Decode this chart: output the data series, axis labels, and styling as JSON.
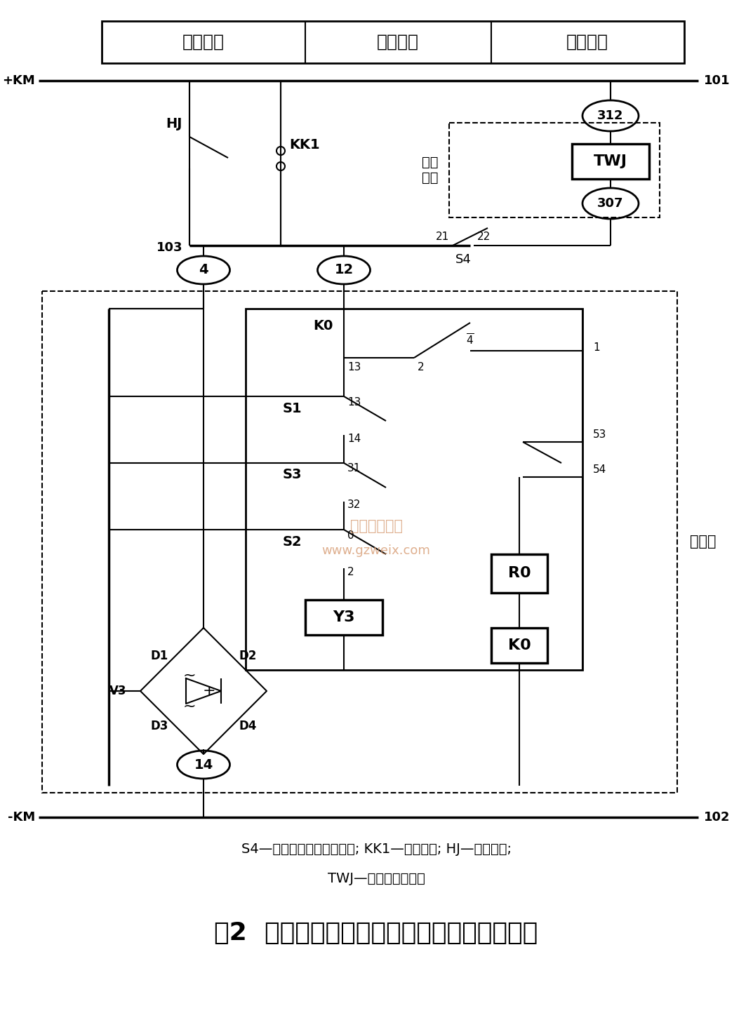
{
  "title": "图2  断路器合闸、防跳及跳位监视接线原理图",
  "subtitle_line1": "S4—与主轴联动的辅助开关; KK1—合闸按钮; HJ—合闸接点;",
  "subtitle_line2": "TWJ—跳位监视继电器",
  "header_labels": [
    "合闸回路",
    "防跳回路",
    "跳位监视"
  ],
  "label_wj": "微机\n保护",
  "label_duan": "断路器",
  "bg_color": "#ffffff",
  "line_color": "#000000",
  "watermark_text1": "精通维修下载",
  "watermark_text2": "www.gzweix.com",
  "watermark_color": "#d4956a"
}
